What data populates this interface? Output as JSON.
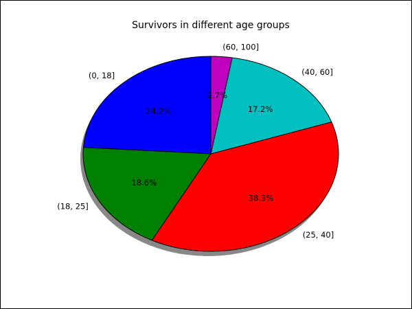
{
  "chart_data": {
    "type": "pie",
    "title": "Survivors in different age groups",
    "categories": [
      "(0, 18]",
      "(18, 25]",
      "(25, 40]",
      "(40, 60]",
      "(60, 100]"
    ],
    "values": [
      24.2,
      18.6,
      38.3,
      17.2,
      2.7
    ],
    "percent_labels": [
      "24.2%",
      "18.6%",
      "38.3%",
      "17.2%",
      "2.7%"
    ],
    "colors": [
      "#0000ff",
      "#008000",
      "#ff0000",
      "#00bfbf",
      "#bf00bf"
    ],
    "start_angle": 90,
    "direction": "counterclockwise",
    "shadow": true,
    "legend": "none"
  }
}
